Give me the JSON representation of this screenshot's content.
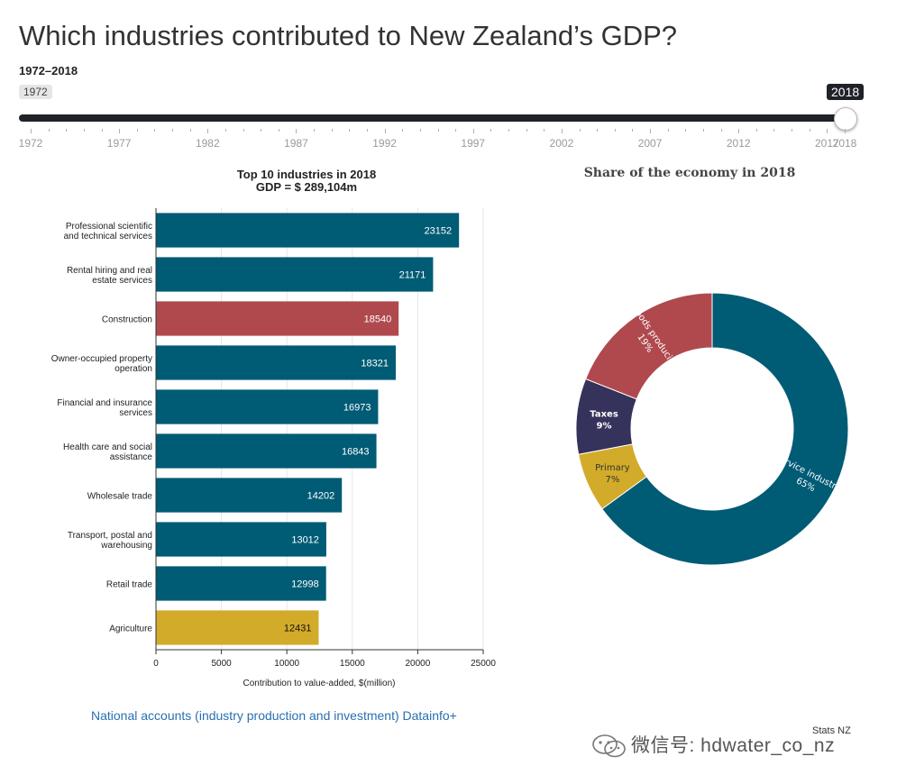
{
  "page": {
    "title": "Which industries contributed to New Zealand’s GDP?",
    "range_label": "1972–2018",
    "range_start_value": "1972"
  },
  "slider": {
    "min": 1972,
    "max": 2018,
    "value": 2018,
    "value_label": "2018",
    "tick_labels": [
      "1972",
      "1977",
      "1982",
      "1987",
      "1992",
      "1997",
      "2002",
      "2007",
      "2012",
      "2017",
      "2018"
    ]
  },
  "bar_chart": {
    "title_line1": "Top 10 industries in 2018",
    "title_line2": "GDP = $ 289,104m"
  },
  "donut_chart": {
    "title": "Share of the economy in 2018"
  },
  "chart_data": [
    {
      "type": "bar",
      "orientation": "horizontal",
      "title": "Top 10 industries in 2018 GDP = $ 289,104m",
      "xlabel": "Contribution to value-added, $(million)",
      "ylabel": "",
      "xlim": [
        0,
        25000
      ],
      "xticks": [
        "0",
        "5000",
        "10000",
        "15000",
        "20000",
        "25000"
      ],
      "grid": true,
      "categories": [
        [
          "Professional scientific",
          "and technical services"
        ],
        [
          "Rental hiring and real",
          "estate services"
        ],
        [
          "Construction"
        ],
        [
          "Owner-occupied property",
          "operation"
        ],
        [
          "Financial and insurance",
          "services"
        ],
        [
          "Health care and social",
          "assistance"
        ],
        [
          "Wholesale trade"
        ],
        [
          "Transport, postal and",
          "warehousing"
        ],
        [
          "Retail trade"
        ],
        [
          "Agriculture"
        ]
      ],
      "values": [
        23152,
        21171,
        18540,
        18321,
        16973,
        16843,
        14202,
        13012,
        12998,
        12431
      ],
      "groups": [
        "Service industries",
        "Service industries",
        "Goods producing",
        "Service industries",
        "Service industries",
        "Service industries",
        "Service industries",
        "Service industries",
        "Service industries",
        "Primary"
      ],
      "colors": {
        "Service industries": "#005b75",
        "Goods producing": "#b0494e",
        "Primary": "#d3ab2a"
      }
    },
    {
      "type": "pie",
      "style": "donut",
      "title": "Share of the economy in 2018",
      "slices": [
        {
          "label": "Service industries",
          "percent_label": "65%",
          "value": 65,
          "color": "#005b75"
        },
        {
          "label": "Primary",
          "percent_label": "7%",
          "value": 7,
          "color": "#d3ab2a"
        },
        {
          "label": "Taxes",
          "percent_label": "9%",
          "value": 9,
          "color": "#35325b"
        },
        {
          "label": "Goods producing",
          "percent_label": "19%",
          "value": 19,
          "color": "#b0494e"
        }
      ]
    }
  ],
  "footer": {
    "source_link": "National accounts (industry production and investment) Datainfo+",
    "credit": "Stats NZ",
    "watermark": "微信号: hdwater_co_nz"
  }
}
